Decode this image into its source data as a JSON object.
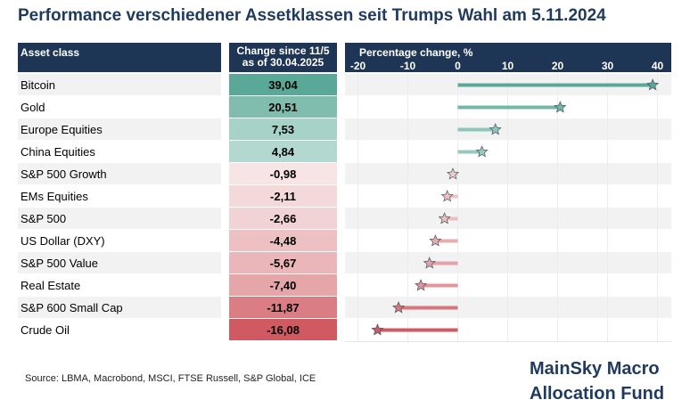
{
  "title": "Performance verschiedener Assetklassen seit Trumps Wahl am 5.11.2024",
  "header": {
    "asset_class": "Asset class",
    "change_line1": "Change since 11/5",
    "change_line2": "as of 30.04.2025",
    "chart_label": "Percentage change, %"
  },
  "source": "Source: LBMA, Macrobond, MSCI, FTSE Russell, S&P Global, ICE",
  "brand": {
    "line1": "MainSky Macro",
    "line2": "Allocation Fund"
  },
  "colors": {
    "header_bg": "#1e3556",
    "title": "#1f3a5f",
    "positive_strong": "#5aa897",
    "negative_strong": "#cf5a62"
  },
  "chart_data": {
    "type": "bar",
    "title": "Percentage change, %",
    "categories": [
      "Bitcoin",
      "Gold",
      "Europe Equities",
      "China Equities",
      "S&P 500 Growth",
      "EMs Equities",
      "S&P 500",
      "US Dollar (DXY)",
      "S&P 500 Value",
      "Real Estate",
      "S&P 600 Small Cap",
      "Crude Oil"
    ],
    "values": [
      39.04,
      20.51,
      7.53,
      4.84,
      -0.98,
      -2.11,
      -2.66,
      -4.48,
      -5.67,
      -7.4,
      -11.87,
      -16.08
    ],
    "value_labels": [
      "39,04",
      "20,51",
      "7,53",
      "4,84",
      "-0,98",
      "-2,11",
      "-2,66",
      "-4,48",
      "-5,67",
      "-7,40",
      "-11,87",
      "-16,08"
    ],
    "xticks": [
      -20,
      -10,
      0,
      10,
      20,
      30,
      40
    ],
    "xlim": [
      -20,
      40
    ],
    "orientation": "horizontal",
    "marker": "star"
  }
}
